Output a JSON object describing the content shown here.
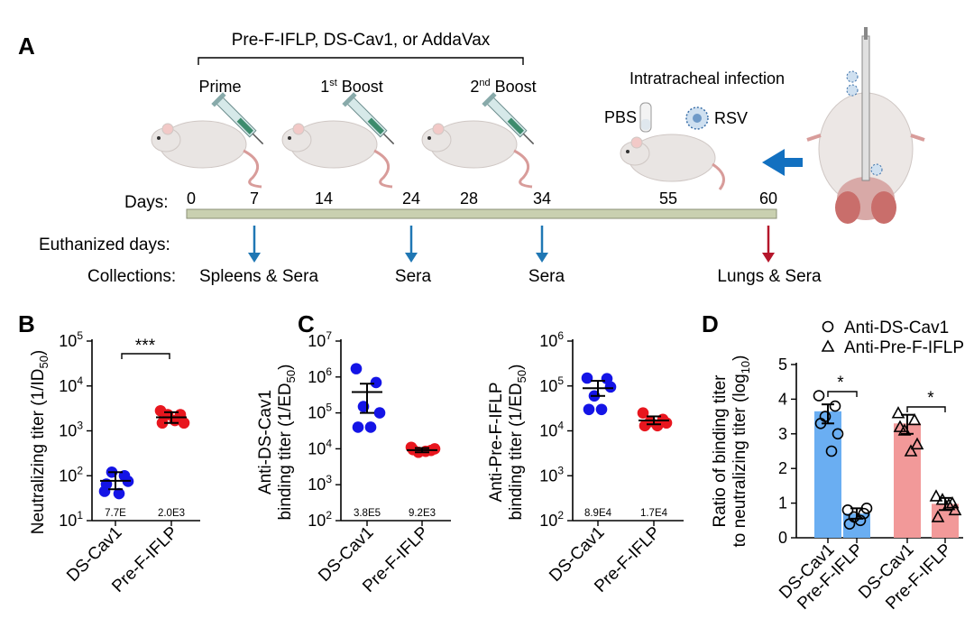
{
  "panel_a": {
    "label": "A",
    "vaccine_groups": "Pre-F-IFLP, DS-Cav1, or AddaVax",
    "immunizations": [
      {
        "name": "Prime",
        "sup": ""
      },
      {
        "name": "1",
        "sup": "st",
        "rest": " Boost"
      },
      {
        "name": "2",
        "sup": "nd",
        "rest": " Boost"
      }
    ],
    "infection_title": "Intratracheal infection",
    "pbs_label": "PBS",
    "rsv_label": "RSV",
    "days_label": "Days:",
    "days": [
      {
        "value": "0",
        "color": "#1a9641"
      },
      {
        "value": "7",
        "color": "#e4262b"
      },
      {
        "value": "14",
        "color": "#1a9641"
      },
      {
        "value": "24",
        "color": "#e4262b"
      },
      {
        "value": "28",
        "color": "#1a9641"
      },
      {
        "value": "34",
        "color": "#e4262b"
      },
      {
        "value": "55",
        "color": "#222222"
      },
      {
        "value": "60",
        "color": "#e4262b"
      }
    ],
    "euthanized_label": "Euthanized days:",
    "collections_label": "Collections:",
    "collections": [
      "Spleens & Sera",
      "Sera",
      "Sera",
      "Lungs & Sera"
    ],
    "colors": {
      "timeline": "#c9d0b0",
      "blue_arrow": "#1f77b4",
      "red_arrow": "#b5162b",
      "big_arrow": "#1270c0"
    }
  },
  "panel_b": {
    "label": "B",
    "ylabel_main": "Neutralizing titer (1/ID",
    "ylabel_sub": "50",
    "ylabel_close": ")",
    "significance": "***",
    "chart_data": {
      "type": "scatter",
      "scale": "log10",
      "ylim": [
        10,
        100000
      ],
      "y_ticks": [
        {
          "base": "10",
          "exp": "1"
        },
        {
          "base": "10",
          "exp": "2"
        },
        {
          "base": "10",
          "exp": "3"
        },
        {
          "base": "10",
          "exp": "4"
        },
        {
          "base": "10",
          "exp": "5"
        }
      ],
      "detection_limit": 10,
      "categories": [
        "DS-Cav1",
        "Pre-F-IFLP"
      ],
      "annotations": [
        "7.7E",
        "2.0E3"
      ],
      "series": [
        {
          "name": "DS-Cav1",
          "color": "#1414e6",
          "mean": 77,
          "sem": [
            50,
            120
          ],
          "values": [
            45,
            100,
            120,
            75,
            65,
            40
          ]
        },
        {
          "name": "Pre-F-IFLP",
          "color": "#e8161e",
          "mean": 2000,
          "sem": [
            1500,
            2600
          ],
          "values": [
            2800,
            2300,
            2300,
            1500,
            1500,
            1700
          ]
        }
      ]
    }
  },
  "panel_c": {
    "label": "C",
    "left": {
      "ylabel_line1": "Anti-DS-Cav1",
      "ylabel_line2_main": "binding titer (1/ED",
      "ylabel_sub": "50",
      "ylabel_close": ")",
      "chart_data": {
        "type": "scatter",
        "scale": "log10",
        "ylim": [
          100,
          10000000
        ],
        "y_ticks": [
          {
            "base": "10",
            "exp": "2"
          },
          {
            "base": "10",
            "exp": "3"
          },
          {
            "base": "10",
            "exp": "4"
          },
          {
            "base": "10",
            "exp": "5"
          },
          {
            "base": "10",
            "exp": "6"
          },
          {
            "base": "10",
            "exp": "7"
          }
        ],
        "detection_limit": 100,
        "categories": [
          "DS-Cav1",
          "Pre-F-IFLP"
        ],
        "annotations": [
          "3.8E5",
          "9.2E3"
        ],
        "series": [
          {
            "name": "DS-Cav1",
            "color": "#1414e6",
            "mean": 380000,
            "sem": [
              100000,
              650000
            ],
            "values": [
              1700000,
              700000,
              150000,
              100000,
              40000,
              40000
            ]
          },
          {
            "name": "Pre-F-IFLP",
            "color": "#e8161e",
            "mean": 9200,
            "sem": [
              8000,
              10500
            ],
            "values": [
              11000,
              9000,
              8000,
              10000,
              9500,
              8500
            ]
          }
        ]
      }
    },
    "right": {
      "ylabel_line1": "Anti-Pre-F-IFLP",
      "ylabel_line2_main": "binding titer (1/ED",
      "ylabel_sub": "50",
      "ylabel_close": ")",
      "chart_data": {
        "type": "scatter",
        "scale": "log10",
        "ylim": [
          100,
          1000000
        ],
        "y_ticks": [
          {
            "base": "10",
            "exp": "2"
          },
          {
            "base": "10",
            "exp": "3"
          },
          {
            "base": "10",
            "exp": "4"
          },
          {
            "base": "10",
            "exp": "5"
          },
          {
            "base": "10",
            "exp": "6"
          }
        ],
        "detection_limit": 100,
        "categories": [
          "DS-Cav1",
          "Pre-F-IFLP"
        ],
        "annotations": [
          "8.9E4",
          "1.7E4"
        ],
        "series": [
          {
            "name": "DS-Cav1",
            "color": "#1414e6",
            "mean": 89000,
            "sem": [
              60000,
              130000
            ],
            "values": [
              150000,
              145000,
              60000,
              95000,
              30000,
              30000
            ]
          },
          {
            "name": "Pre-F-IFLP",
            "color": "#e8161e",
            "mean": 17000,
            "sem": [
              14000,
              21000
            ],
            "values": [
              25000,
              18000,
              16000,
              15000,
              13000,
              13000
            ]
          }
        ]
      }
    }
  },
  "panel_d": {
    "label": "D",
    "legend": [
      {
        "marker": "circle",
        "label": "Anti-DS-Cav1"
      },
      {
        "marker": "triangle",
        "label": "Anti-Pre-F-IFLP"
      }
    ],
    "ylabel_line1": "Ratio of binding titer",
    "ylabel_line2_main": "to neutralizing titer (log",
    "ylabel_sub": "10",
    "ylabel_close": ")",
    "significance": [
      "*",
      "*"
    ],
    "chart_data": {
      "type": "bar",
      "ylim": [
        0,
        5
      ],
      "y_ticks": [
        "0",
        "1",
        "2",
        "3",
        "4",
        "5"
      ],
      "categories": [
        "DS-Cav1",
        "Pre-F-IFLP",
        "DS-Cav1",
        "Pre-F-IFLP"
      ],
      "series": [
        {
          "name": "Anti-DS-Cav1",
          "marker": "circle",
          "color": "#6aaef2",
          "bars": [
            {
              "category": "DS-Cav1",
              "value": 3.65,
              "sem": [
                3.3,
                3.85
              ],
              "points": [
                4.1,
                3.8,
                3.5,
                3.0,
                3.3,
                2.5
              ]
            },
            {
              "category": "Pre-F-IFLP",
              "value": 0.7,
              "sem": [
                0.55,
                0.85
              ],
              "points": [
                0.8,
                0.7,
                0.6,
                0.85,
                0.4,
                0.5
              ]
            }
          ]
        },
        {
          "name": "Anti-Pre-F-IFLP",
          "marker": "triangle",
          "color": "#f29999",
          "bars": [
            {
              "category": "DS-Cav1",
              "value": 3.3,
              "sem": [
                3.0,
                3.55
              ],
              "points": [
                3.6,
                3.4,
                3.1,
                2.7,
                3.2,
                2.5
              ]
            },
            {
              "category": "Pre-F-IFLP",
              "value": 0.98,
              "sem": [
                0.8,
                1.15
              ],
              "points": [
                1.2,
                1.0,
                1.1,
                0.8,
                0.6,
                0.95
              ]
            }
          ]
        }
      ]
    }
  }
}
